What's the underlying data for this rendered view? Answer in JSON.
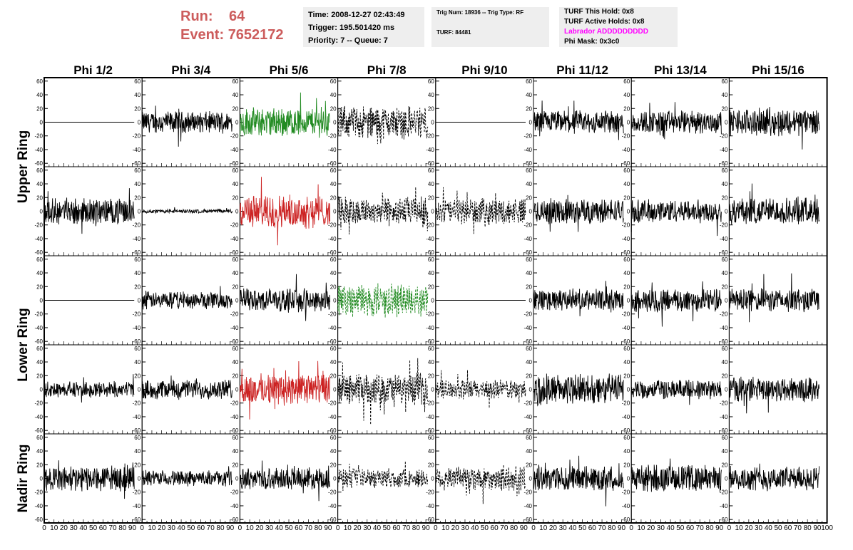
{
  "header": {
    "run_label": "Run:",
    "run_value": "64",
    "event_label": "Event:",
    "event_value": "7652172",
    "time": "Time: 2008-12-27 02:43:49",
    "trigger": "Trigger: 195.501420 ms",
    "priority": "Priority: 7 -- Queue: 7",
    "trig_line": "Trig Num: 18936 -- Trig Type: RF",
    "turf_num": "TURF: 84481",
    "turf_this_hold": "TURF This Hold: 0x8",
    "turf_active_holds": "TURF Active Holds: 0x8",
    "labrador": "Labrador ADDDDDDDDD",
    "phi_mask": "Phi Mask: 0x3c0",
    "colors": {
      "run": "#cc5c5c",
      "labrador": "#ff00ff"
    }
  },
  "chart_data": {
    "type": "line",
    "columns": [
      "Phi 1/2",
      "Phi 3/4",
      "Phi 5/6",
      "Phi 7/8",
      "Phi 9/10",
      "Phi 11/12",
      "Phi 13/14",
      "Phi 15/16"
    ],
    "row_labels": [
      {
        "label": "Upper Ring",
        "rows": [
          0,
          1
        ]
      },
      {
        "label": "Lower Ring",
        "rows": [
          2,
          3
        ]
      },
      {
        "label": "Nadir Ring",
        "rows": [
          4
        ]
      }
    ],
    "xlim": [
      0,
      100
    ],
    "ylim": [
      -65,
      65
    ],
    "y_ticks": [
      -60,
      -40,
      -20,
      0,
      20,
      40,
      60
    ],
    "x_ticks": [
      0,
      10,
      20,
      30,
      40,
      50,
      60,
      70,
      80,
      90,
      100
    ],
    "cells": [
      [
        {
          "c": "#000000",
          "a": 0,
          "d": 0
        },
        {
          "c": "#000000",
          "a": 11,
          "d": 0
        },
        {
          "c": "#228b22",
          "a": 15,
          "d": 0
        },
        {
          "c": "#000000",
          "a": 17,
          "d": 1
        },
        {
          "c": "#000000",
          "a": 0,
          "d": 0
        },
        {
          "c": "#000000",
          "a": 12,
          "d": 0
        },
        {
          "c": "#000000",
          "a": 12,
          "d": 0
        },
        {
          "c": "#000000",
          "a": 14,
          "d": 0
        }
      ],
      [
        {
          "c": "#000000",
          "a": 13,
          "d": 0
        },
        {
          "c": "#000000",
          "a": 2,
          "d": 0
        },
        {
          "c": "#cc2222",
          "a": 17,
          "d": 0
        },
        {
          "c": "#000000",
          "a": 15,
          "d": 1
        },
        {
          "c": "#000000",
          "a": 13,
          "d": 1
        },
        {
          "c": "#000000",
          "a": 13,
          "d": 0
        },
        {
          "c": "#000000",
          "a": 12,
          "d": 0
        },
        {
          "c": "#000000",
          "a": 14,
          "d": 0
        }
      ],
      [
        {
          "c": "#000000",
          "a": 0,
          "d": 0
        },
        {
          "c": "#000000",
          "a": 9,
          "d": 0
        },
        {
          "c": "#000000",
          "a": 12,
          "d": 0
        },
        {
          "c": "#228b22",
          "a": 17,
          "d": 1
        },
        {
          "c": "#000000",
          "a": 0,
          "d": 0
        },
        {
          "c": "#000000",
          "a": 11,
          "d": 0
        },
        {
          "c": "#000000",
          "a": 12,
          "d": 0
        },
        {
          "c": "#000000",
          "a": 12,
          "d": 0
        }
      ],
      [
        {
          "c": "#000000",
          "a": 8,
          "d": 0
        },
        {
          "c": "#000000",
          "a": 10,
          "d": 0
        },
        {
          "c": "#cc2222",
          "a": 16,
          "d": 0
        },
        {
          "c": "#000000",
          "a": 16,
          "d": 1
        },
        {
          "c": "#000000",
          "a": 10,
          "d": 1
        },
        {
          "c": "#000000",
          "a": 16,
          "d": 0
        },
        {
          "c": "#000000",
          "a": 10,
          "d": 0
        },
        {
          "c": "#000000",
          "a": 13,
          "d": 0
        }
      ],
      [
        {
          "c": "#000000",
          "a": 13,
          "d": 0
        },
        {
          "c": "#000000",
          "a": 8,
          "d": 0
        },
        {
          "c": "#000000",
          "a": 11,
          "d": 0
        },
        {
          "c": "#000000",
          "a": 10,
          "d": 1
        },
        {
          "c": "#000000",
          "a": 13,
          "d": 1
        },
        {
          "c": "#000000",
          "a": 13,
          "d": 0
        },
        {
          "c": "#000000",
          "a": 14,
          "d": 0
        },
        {
          "c": "#000000",
          "a": 12,
          "d": 0
        }
      ]
    ]
  }
}
